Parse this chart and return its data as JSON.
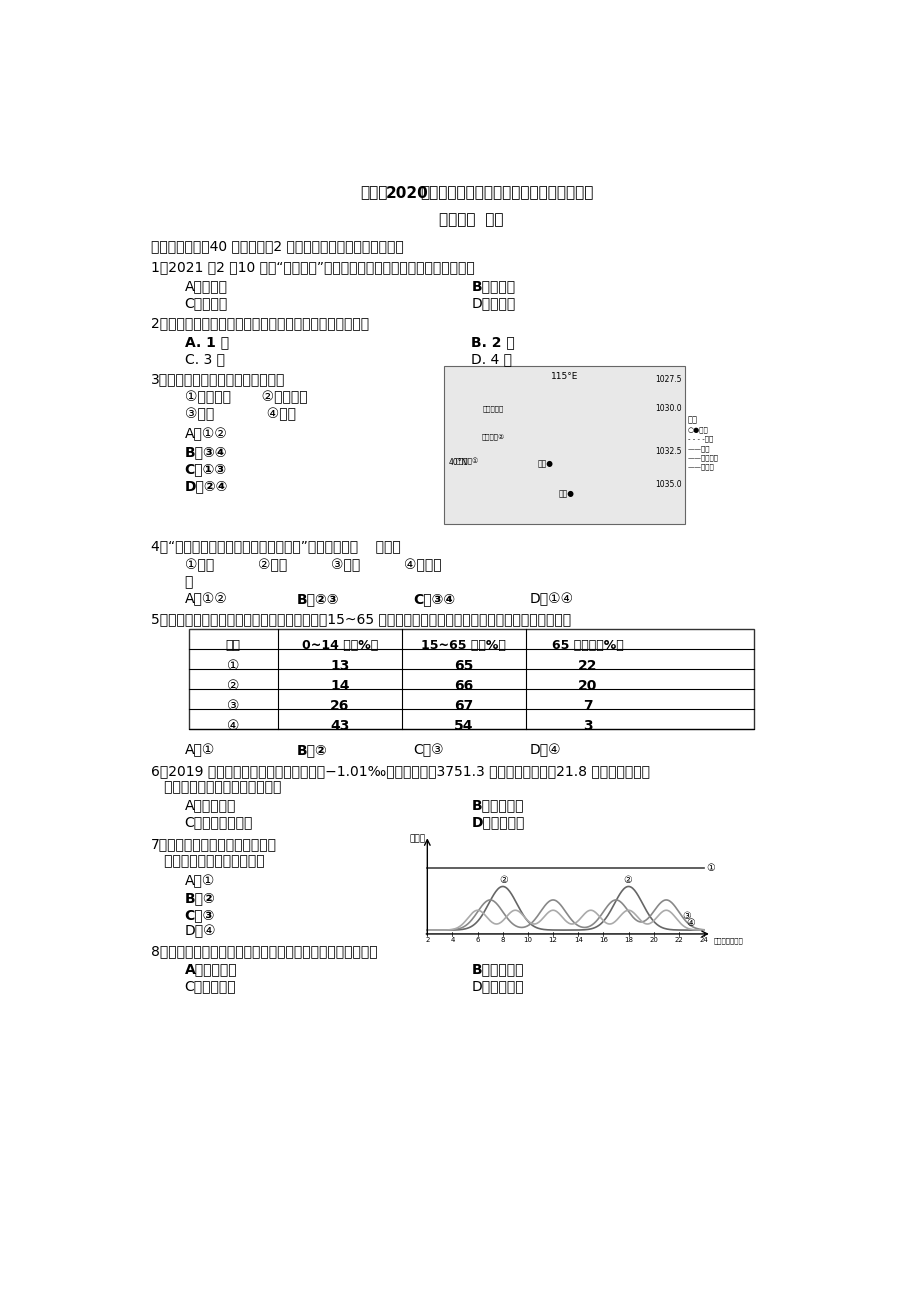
{
  "title_prefix": "虹口区",
  "title_bold": "2020",
  "title_suffix": "学年度下学期期中中学生学习能力诊断测试",
  "title_line2": "高二地理  试卷",
  "section1": "一、选择题（內40 分，每小题2 分，每小题只有一个正确答案）",
  "q1": "1．2021 年2 月10 日，“天问一号”探测器进入火星轨道。这说明它已经离开",
  "q1_a": "A．总星系",
  "q1_b": "B．银河系",
  "q1_c": "C．太阳系",
  "q1_d": "D．地月系",
  "q2": "2．在岩石圈六大板块中，影响我国地表基本面貌的板块有",
  "q2_a": "A. 1 个",
  "q2_b": "B. 2 个",
  "q2_c": "C. 3 个",
  "q2_d": "D. 4 个",
  "q3": "3．右图四个城市中盛行偏南风的是",
  "q3_sub1": "①呼和浩特       ②乌兰察布",
  "q3_sub2": "③北京            ④天津",
  "q3_a": "A．①②",
  "q3_b": "B．③④",
  "q3_c": "C．①③",
  "q3_d": "D．②④",
  "q4": "4．“黄河之水天上来，奔流到海不复回”反映的水循环    环节有",
  "q4_sub1": "①蘵发          ②降水          ③径流          ④水汽输",
  "q4_sub2": "送",
  "q4_a": "A．①②",
  "q4_b": "B．②③",
  "q4_c": "C．③④",
  "q4_d": "D．①④",
  "q5": "5．人口抚养比是指非劳动人口数与劳动人口（15~65 岁）数之比。下列四个国家中，人口抚养比最大的是",
  "table_headers": [
    "国家",
    "0~14 岁（%）",
    "15~65 岁（%）",
    "65 岁以上（%）"
  ],
  "table_rows": [
    [
      "①",
      "13",
      "65",
      "22"
    ],
    [
      "②",
      "14",
      "66",
      "20"
    ],
    [
      "③",
      "26",
      "67",
      "7"
    ],
    [
      "④",
      "43",
      "54",
      "3"
    ]
  ],
  "q5_a": "A．①",
  "q5_b": "B．②",
  "q5_c": "C．③",
  "q5_d": "D．④",
  "q6_line1": "6．2019 年，黑龙江省人口自然增长率为−1.01‰，常住人口为3751.3 万人，比上年减少21.8 万人。黑龙江省",
  "q6_line2": "   常住人口减少主要是因为，人口",
  "q6_a": "A．出生率低",
  "q6_b": "B．死亡率高",
  "q6_c": "C．自然增长率低",
  "q6_d": "D．迁出率高",
  "q7_line1": "7．右图中与表示我国多数大城市",
  "q7_line2": "   公交客流量曲线最接近的是",
  "q7_a": "A．①",
  "q7_b": "B．②",
  "q7_c": "C．③",
  "q7_d": "D．④",
  "chart_ylabel": "客流量",
  "chart_xlabel": "北京时间（时）",
  "q8": "8．上海市中心城区与郊区房价差异较大，其主要影响因素是",
  "q8_a": "A．土地价格",
  "q8_b": "B．公共设施",
  "q8_c": "C．绿化面积",
  "q8_d": "D．人口密度",
  "bg_color": "#ffffff"
}
